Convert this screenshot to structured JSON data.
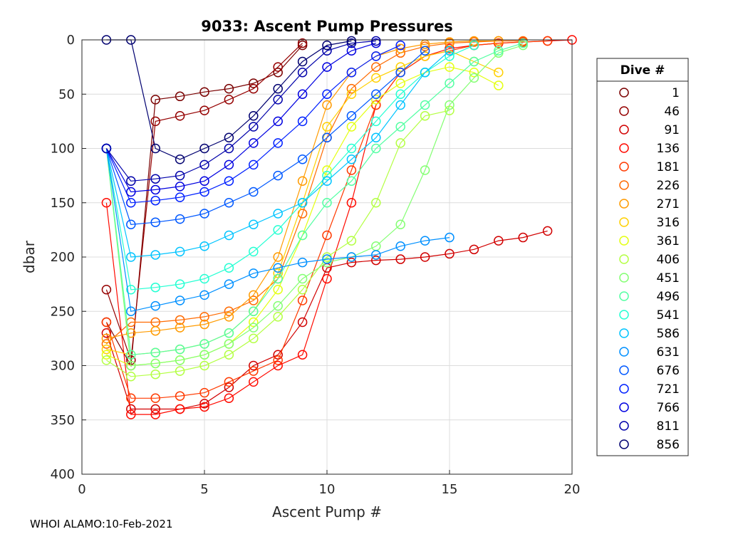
{
  "chart_data": {
    "type": "line",
    "title": "9033: Ascent Pump Pressures",
    "xlabel": "Ascent Pump #",
    "ylabel": "dbar",
    "xlim": [
      0,
      20
    ],
    "ylim": [
      0,
      400
    ],
    "y_reversed": true,
    "xticks": [
      "0",
      "5",
      "10",
      "15",
      "20"
    ],
    "yticks": [
      "0",
      "50",
      "100",
      "150",
      "200",
      "250",
      "300",
      "350",
      "400"
    ],
    "grid": true,
    "marker": "open-circle",
    "legend": {
      "title": "Dive #",
      "position": "right",
      "entries": [
        "1",
        "46",
        "91",
        "136",
        "181",
        "226",
        "271",
        "316",
        "361",
        "406",
        "451",
        "496",
        "541",
        "586",
        "631",
        "676",
        "721",
        "766",
        "811",
        "856"
      ],
      "colors": [
        "#7a0000",
        "#950000",
        "#d10000",
        "#ff0a00",
        "#ff3a00",
        "#ff6a00",
        "#ff9b00",
        "#ffd000",
        "#e4ff12",
        "#b4ff43",
        "#84ff73",
        "#54ffa3",
        "#24ffd3",
        "#00c4ff",
        "#0090ff",
        "#0058ff",
        "#0020ff",
        "#0000e0",
        "#0000aa",
        "#000070"
      ]
    },
    "series": [
      {
        "name": "1",
        "color": "#7a0000",
        "x": [
          1,
          2,
          3,
          4,
          5,
          6,
          7,
          8,
          9
        ],
        "values": [
          260,
          300,
          55,
          52,
          48,
          45,
          40,
          30,
          5
        ]
      },
      {
        "name": "46",
        "color": "#950000",
        "x": [
          1,
          2,
          3,
          4,
          5,
          6,
          7,
          8,
          9
        ],
        "values": [
          230,
          295,
          75,
          70,
          65,
          55,
          45,
          25,
          3
        ]
      },
      {
        "name": "91",
        "color": "#d10000",
        "x": [
          1,
          2,
          3,
          4,
          5,
          6,
          7,
          8,
          9,
          10,
          11,
          12,
          13,
          14,
          15,
          16,
          17,
          18,
          19
        ],
        "values": [
          270,
          340,
          340,
          340,
          335,
          320,
          300,
          290,
          260,
          210,
          205,
          203,
          202,
          200,
          197,
          193,
          185,
          182,
          176
        ]
      },
      {
        "name": "136",
        "color": "#ff0a00",
        "x": [
          1,
          2,
          3,
          4,
          5,
          6,
          7,
          8,
          9,
          10,
          11,
          12,
          13,
          14,
          15,
          16,
          17,
          18,
          19,
          20
        ],
        "values": [
          150,
          345,
          345,
          340,
          338,
          330,
          315,
          300,
          290,
          220,
          150,
          60,
          30,
          15,
          8,
          5,
          3,
          2,
          1,
          0
        ]
      },
      {
        "name": "181",
        "color": "#ff3a00",
        "x": [
          1,
          2,
          3,
          4,
          5,
          6,
          7,
          8,
          9,
          10,
          11,
          12,
          13,
          14,
          15,
          16,
          17,
          18,
          19
        ],
        "values": [
          260,
          330,
          330,
          328,
          325,
          315,
          305,
          295,
          240,
          180,
          120,
          60,
          30,
          15,
          10,
          5,
          3,
          2,
          1
        ]
      },
      {
        "name": "226",
        "color": "#ff6a00",
        "x": [
          1,
          2,
          3,
          4,
          5,
          6,
          7,
          8,
          9,
          10,
          11,
          12,
          13,
          14,
          15,
          16,
          17,
          18
        ],
        "values": [
          280,
          260,
          260,
          258,
          255,
          250,
          240,
          220,
          160,
          90,
          45,
          25,
          12,
          6,
          3,
          2,
          1,
          1
        ]
      },
      {
        "name": "271",
        "color": "#ff9b00",
        "x": [
          1,
          2,
          3,
          4,
          5,
          6,
          7,
          8,
          9,
          10,
          11,
          12,
          13,
          14,
          15,
          16,
          17
        ],
        "values": [
          275,
          270,
          268,
          265,
          262,
          255,
          235,
          200,
          130,
          60,
          30,
          15,
          8,
          4,
          2,
          1,
          1
        ]
      },
      {
        "name": "316",
        "color": "#ffd000",
        "x": [
          1,
          2,
          3,
          4,
          5,
          6,
          7,
          8,
          9,
          10,
          11,
          12,
          13,
          14,
          15,
          16,
          17
        ],
        "values": [
          285,
          290,
          288,
          285,
          280,
          270,
          250,
          215,
          150,
          80,
          50,
          35,
          25,
          15,
          10,
          20,
          30
        ]
      },
      {
        "name": "361",
        "color": "#e4ff12",
        "x": [
          1,
          2,
          3,
          4,
          5,
          6,
          7,
          8,
          9,
          10,
          11,
          12,
          13,
          14,
          15,
          16,
          17
        ],
        "values": [
          290,
          300,
          298,
          295,
          290,
          280,
          260,
          230,
          180,
          120,
          80,
          55,
          40,
          30,
          25,
          30,
          42
        ]
      },
      {
        "name": "406",
        "color": "#b4ff43",
        "x": [
          1,
          2,
          3,
          4,
          5,
          6,
          7,
          8,
          9,
          10,
          11,
          12,
          13,
          14,
          15
        ],
        "values": [
          295,
          310,
          308,
          305,
          300,
          290,
          275,
          255,
          230,
          200,
          185,
          150,
          95,
          70,
          65
        ]
      },
      {
        "name": "451",
        "color": "#84ff73",
        "x": [
          1,
          2,
          3,
          4,
          5,
          6,
          7,
          8,
          9,
          10,
          11,
          12,
          13,
          14,
          15,
          16,
          17,
          18
        ],
        "values": [
          100,
          300,
          298,
          295,
          290,
          280,
          265,
          245,
          220,
          205,
          200,
          190,
          170,
          120,
          60,
          35,
          12,
          5
        ]
      },
      {
        "name": "496",
        "color": "#54ffa3",
        "x": [
          1,
          2,
          3,
          4,
          5,
          6,
          7,
          8,
          9,
          10,
          11,
          12,
          13,
          14,
          15,
          16,
          17,
          18
        ],
        "values": [
          100,
          290,
          288,
          285,
          280,
          270,
          250,
          220,
          180,
          150,
          130,
          100,
          80,
          60,
          40,
          20,
          10,
          3
        ]
      },
      {
        "name": "541",
        "color": "#24ffd3",
        "x": [
          1,
          2,
          3,
          4,
          5,
          6,
          7,
          8,
          9,
          10,
          11,
          12,
          13,
          14,
          15,
          16
        ],
        "values": [
          100,
          230,
          228,
          225,
          220,
          210,
          195,
          175,
          150,
          125,
          100,
          75,
          50,
          30,
          15,
          5
        ]
      },
      {
        "name": "586",
        "color": "#00c4ff",
        "x": [
          1,
          2,
          3,
          4,
          5,
          6,
          7,
          8,
          9,
          10,
          11,
          12,
          13,
          14,
          15
        ],
        "values": [
          100,
          200,
          198,
          195,
          190,
          180,
          170,
          160,
          150,
          130,
          110,
          90,
          60,
          30,
          10
        ]
      },
      {
        "name": "631",
        "color": "#0090ff",
        "x": [
          1,
          2,
          3,
          4,
          5,
          6,
          7,
          8,
          9,
          10,
          11,
          12,
          13,
          14,
          15
        ],
        "values": [
          100,
          250,
          245,
          240,
          235,
          225,
          215,
          210,
          205,
          202,
          200,
          198,
          190,
          185,
          182
        ]
      },
      {
        "name": "676",
        "color": "#0058ff",
        "x": [
          1,
          2,
          3,
          4,
          5,
          6,
          7,
          8,
          9,
          10,
          11,
          12,
          13,
          14
        ],
        "values": [
          100,
          170,
          168,
          165,
          160,
          150,
          140,
          125,
          110,
          90,
          70,
          50,
          30,
          10
        ]
      },
      {
        "name": "721",
        "color": "#0020ff",
        "x": [
          1,
          2,
          3,
          4,
          5,
          6,
          7,
          8,
          9,
          10,
          11,
          12,
          13
        ],
        "values": [
          100,
          150,
          148,
          145,
          140,
          130,
          115,
          95,
          75,
          50,
          30,
          15,
          5
        ]
      },
      {
        "name": "766",
        "color": "#0000e0",
        "x": [
          1,
          2,
          3,
          4,
          5,
          6,
          7,
          8,
          9,
          10,
          11,
          12
        ],
        "values": [
          100,
          140,
          138,
          135,
          130,
          115,
          95,
          75,
          50,
          25,
          10,
          3
        ]
      },
      {
        "name": "811",
        "color": "#0000aa",
        "x": [
          1,
          2,
          3,
          4,
          5,
          6,
          7,
          8,
          9,
          10,
          11,
          12
        ],
        "values": [
          100,
          130,
          128,
          125,
          115,
          100,
          80,
          55,
          30,
          10,
          3,
          1
        ]
      },
      {
        "name": "856",
        "color": "#000070",
        "x": [
          1,
          2,
          3,
          4,
          5,
          6,
          7,
          8,
          9,
          10,
          11
        ],
        "values": [
          0,
          0,
          100,
          110,
          100,
          90,
          70,
          45,
          20,
          5,
          1
        ]
      }
    ]
  },
  "footer": "WHOI ALAMO:10-Feb-2021"
}
